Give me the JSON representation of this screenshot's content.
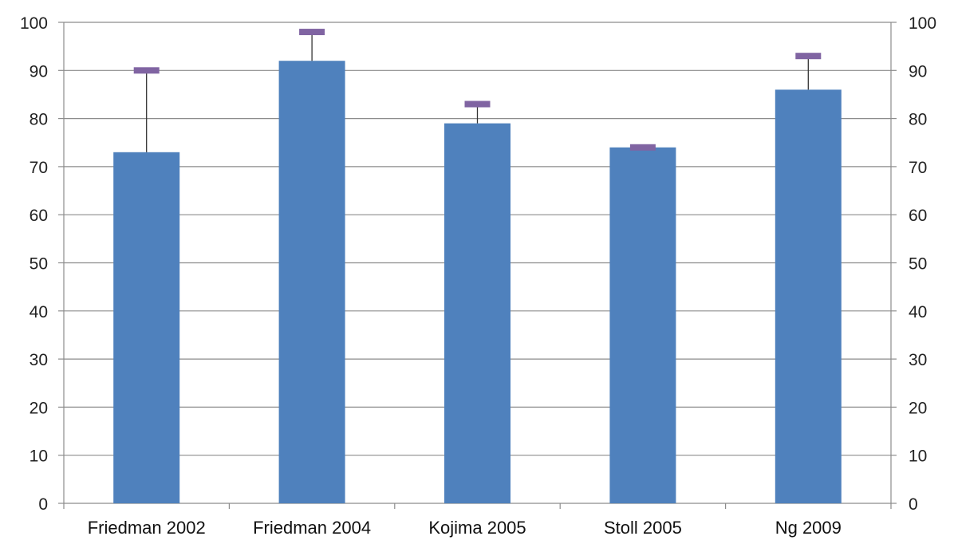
{
  "chart_data": {
    "type": "bar",
    "categories": [
      "Friedman 2002",
      "Friedman 2004",
      "Kojima 2005",
      "Stoll 2005",
      "Ng 2009"
    ],
    "values": [
      73,
      92,
      79,
      74,
      86
    ],
    "error_upper": [
      90,
      98,
      83,
      74,
      93
    ],
    "ylim": [
      0,
      100
    ],
    "y_ticks": [
      "0",
      "10",
      "20",
      "30",
      "40",
      "50",
      "60",
      "70",
      "80",
      "90",
      "100"
    ],
    "secondary_y_axis": true,
    "grid": true,
    "legend": "none",
    "colors": {
      "bar": "#4f81bd",
      "error_cap": "#8064a2",
      "error_line": "#333333",
      "grid": "#8c8c8c",
      "axis": "#8c8c8c"
    }
  }
}
